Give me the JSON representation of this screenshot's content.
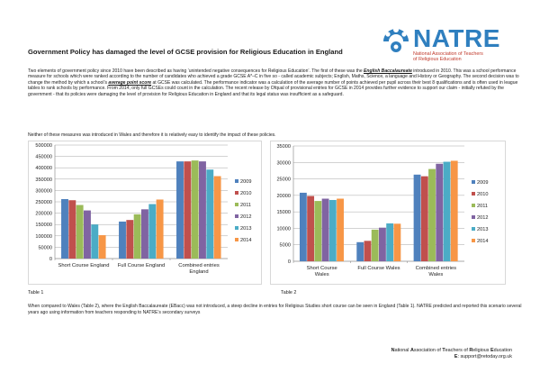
{
  "title": "Government Policy has damaged the level of GCSE provision for Religious Education in England",
  "logo": {
    "word": "NATRE",
    "line1": "National Association of Teachers",
    "line2": "of Religious Education",
    "colors": {
      "blue": "#2f7fbf",
      "red": "#c0392b"
    }
  },
  "para1": {
    "t1": "Two elements of government policy since 2010 have been described as having ‘unintended negative consequences for Religious Education’. The first of these was the ",
    "ebacc": "English Baccalaureate",
    "t2": " introduced in 2010. This was a school performance measure for schools which were ranked according to the number of candidates who achieved a grade GCSE A*–C in five so - called academic subjects; English, Maths, Science, a language and History or Geography. The second decision was to change the method by which a school’s ",
    "aps": "average point score",
    "t3": " at GCSE was calculated. The performance indicator was a calculation of the average number of points achieved per pupil across their best 8 qualifications and is often used in league tables to rank schools by performance. From 2014, only full GCSEs could count in the calculation. The recent release by Ofqual of provisional entries for GCSE in 2014 provides further evidence to support our claim - initially refuted by the government - that its policies were damaging the level of provision for Religious Education in England and that its legal status was insufficient as a safeguard."
  },
  "para2": "Neither of these measures was introduced in Wales and therefore it is relatively easy to identify the impact of these policies.",
  "series_colors": [
    "#4f81bd",
    "#c0504d",
    "#9bbb59",
    "#8064a2",
    "#4bacc6",
    "#f79646"
  ],
  "chart_data": [
    {
      "type": "bar",
      "categories": [
        [
          "Short Course England"
        ],
        [
          "Full Course England"
        ],
        [
          "Combined entries",
          "England"
        ]
      ],
      "series": [
        {
          "name": "2009",
          "values": [
            262000,
            163000,
            428000
          ]
        },
        {
          "name": "2010",
          "values": [
            257000,
            170000,
            428000
          ]
        },
        {
          "name": "2011",
          "values": [
            236000,
            195000,
            432000
          ]
        },
        {
          "name": "2012",
          "values": [
            212000,
            217000,
            428000
          ]
        },
        {
          "name": "2013",
          "values": [
            150000,
            240000,
            392000
          ]
        },
        {
          "name": "2014",
          "values": [
            103000,
            260000,
            363000
          ]
        }
      ],
      "yticks": [
        "0",
        "50000",
        "100000",
        "150000",
        "200000",
        "250000",
        "300000",
        "350000",
        "400000",
        "450000",
        "500000"
      ],
      "ylim": [
        0,
        500000
      ],
      "grid": true,
      "legend": "right"
    },
    {
      "type": "bar",
      "categories": [
        [
          "Short Course",
          "Wales"
        ],
        [
          "Full Course Wales"
        ],
        [
          "Combined entries",
          "Wales"
        ]
      ],
      "series": [
        {
          "name": "2009",
          "values": [
            20800,
            5800,
            26300
          ]
        },
        {
          "name": "2010",
          "values": [
            19800,
            6200,
            25800
          ]
        },
        {
          "name": "2011",
          "values": [
            18300,
            9600,
            28000
          ]
        },
        {
          "name": "2012",
          "values": [
            19000,
            10200,
            29600
          ]
        },
        {
          "name": "2013",
          "values": [
            18600,
            11500,
            30200
          ]
        },
        {
          "name": "2014",
          "values": [
            19000,
            11400,
            30500
          ]
        }
      ],
      "yticks": [
        "0",
        "5000",
        "10000",
        "15000",
        "20000",
        "25000",
        "30000",
        "35000"
      ],
      "ylim": [
        0,
        35000
      ],
      "grid": true,
      "legend": "right"
    }
  ],
  "table1": "Table 1",
  "table2": "Table 2",
  "para3": "When compared to Wales (Table 2), where the English Baccalaureate (EBacc) was not introduced, a steep decline in entries for Religious Studies short course can be seen in England (Table 1). NATRE predicted and reported this scenario several years ago using information from teachers responding to NATRE’s secondary surveys",
  "footer": {
    "org": [
      "N",
      "ational ",
      "A",
      "ssociation of ",
      "T",
      "eachers of ",
      "R",
      "eligious ",
      "E",
      "ducation"
    ],
    "email_label": "E",
    "email": ": support@retoday.org.uk"
  }
}
